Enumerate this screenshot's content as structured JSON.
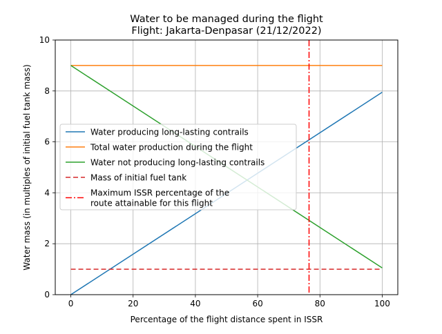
{
  "chart_data": {
    "type": "line",
    "title": "Water to be managed during the flight",
    "subtitle": "Flight: Jakarta-Denpasar (21/12/2022)",
    "xlabel": "Percentage of the flight distance spent in ISSR",
    "ylabel": "Water mass (in multiples of initial fuel tank mass)",
    "xlim": [
      -5,
      105
    ],
    "ylim": [
      0,
      10
    ],
    "xticks": [
      0,
      20,
      40,
      60,
      80,
      100
    ],
    "yticks": [
      0,
      2,
      4,
      6,
      8,
      10
    ],
    "grid": true,
    "legend_position": "center-left",
    "series": [
      {
        "name": "Water producing long-lasting contrails",
        "color": "#1f77b4",
        "style": "solid",
        "x": [
          0,
          100
        ],
        "y": [
          0,
          7.95
        ]
      },
      {
        "name": "Total water production during the flight",
        "color": "#ff7f0e",
        "style": "solid",
        "x": [
          0,
          100
        ],
        "y": [
          9.0,
          9.0
        ]
      },
      {
        "name": "Water not producing long-lasting contrails",
        "color": "#2ca02c",
        "style": "solid",
        "x": [
          0,
          100
        ],
        "y": [
          9.0,
          1.05
        ]
      },
      {
        "name": "Mass of initial fuel tank",
        "color": "#d62728",
        "style": "dashed",
        "x": [
          0,
          100
        ],
        "y": [
          1.0,
          1.0
        ]
      }
    ],
    "vline": {
      "name": "Maximum ISSR percentage of the\n route attainable for this flight",
      "color": "#ff0000",
      "style": "dashdot",
      "x": 76.5
    }
  }
}
